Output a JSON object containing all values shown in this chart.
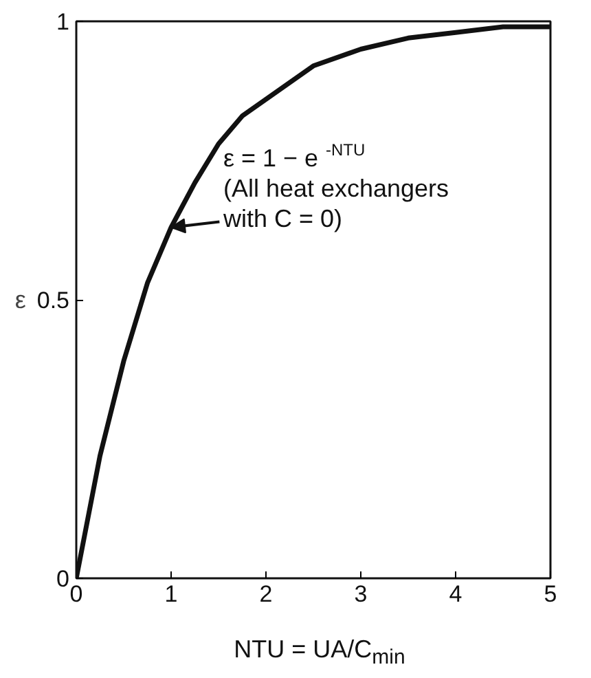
{
  "chart_data": {
    "type": "line",
    "xlabel": "NTU = UA/C$_{min}$",
    "ylabel": "ε",
    "x": [
      0,
      0.25,
      0.5,
      0.75,
      1,
      1.25,
      1.5,
      1.75,
      2,
      2.5,
      3,
      3.5,
      4,
      4.5,
      5
    ],
    "series": [
      {
        "color": "#111111",
        "values": [
          0,
          0.22,
          0.39,
          0.53,
          0.63,
          0.71,
          0.78,
          0.83,
          0.86,
          0.92,
          0.95,
          0.97,
          0.98,
          0.99,
          0.99
        ]
      }
    ],
    "xlim": [
      0,
      5
    ],
    "ylim": [
      0,
      1
    ],
    "xticks": [
      0,
      1,
      2,
      3,
      4,
      5
    ],
    "yticks": [
      0,
      0.5,
      1
    ],
    "annotations": [
      {
        "text": "ε = 1 − e$^{-NTU}$\n(All heat exchangers\nwith C = 0)",
        "x": 1,
        "y": 0.63
      }
    ],
    "grid": false,
    "marker": "none",
    "line_style": "solid"
  }
}
